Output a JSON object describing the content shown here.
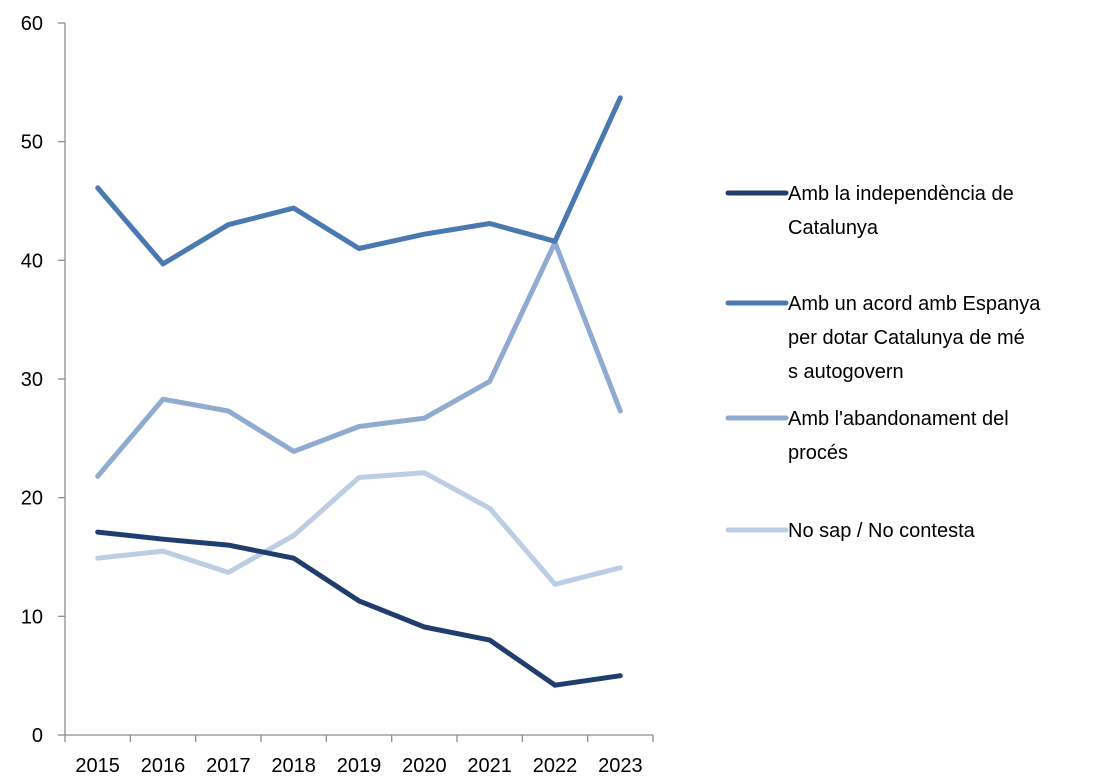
{
  "chart_data": {
    "type": "line",
    "title": "",
    "xlabel": "",
    "ylabel": "",
    "x": [
      "2015",
      "2016",
      "2017",
      "2018",
      "2019",
      "2020",
      "2021",
      "2022",
      "2023"
    ],
    "ylim": [
      0,
      60
    ],
    "yticks": [
      0,
      10,
      20,
      30,
      40,
      50,
      60
    ],
    "grid": false,
    "legend_position": "right",
    "series": [
      {
        "name": "Amb la independència de Catalunya",
        "color": "#1f3e6e",
        "values": [
          17.1,
          16.5,
          16.0,
          14.9,
          11.3,
          9.1,
          8.0,
          4.2,
          5.0
        ]
      },
      {
        "name": "Amb un acord amb Espanya per dotar Catalunya de més autogovern",
        "color": "#4a78b0",
        "values": [
          46.1,
          39.7,
          43.0,
          44.4,
          41.0,
          42.2,
          43.1,
          41.6,
          53.7
        ]
      },
      {
        "name": "Amb l'abandonament del procés",
        "color": "#8fabd0",
        "values": [
          21.8,
          28.3,
          27.3,
          23.9,
          26.0,
          26.7,
          29.8,
          41.5,
          27.3
        ]
      },
      {
        "name": "No sap / No contesta",
        "color": "#bccde4",
        "values": [
          14.9,
          15.5,
          13.7,
          16.8,
          21.7,
          22.1,
          19.1,
          12.7,
          14.1
        ]
      }
    ]
  }
}
